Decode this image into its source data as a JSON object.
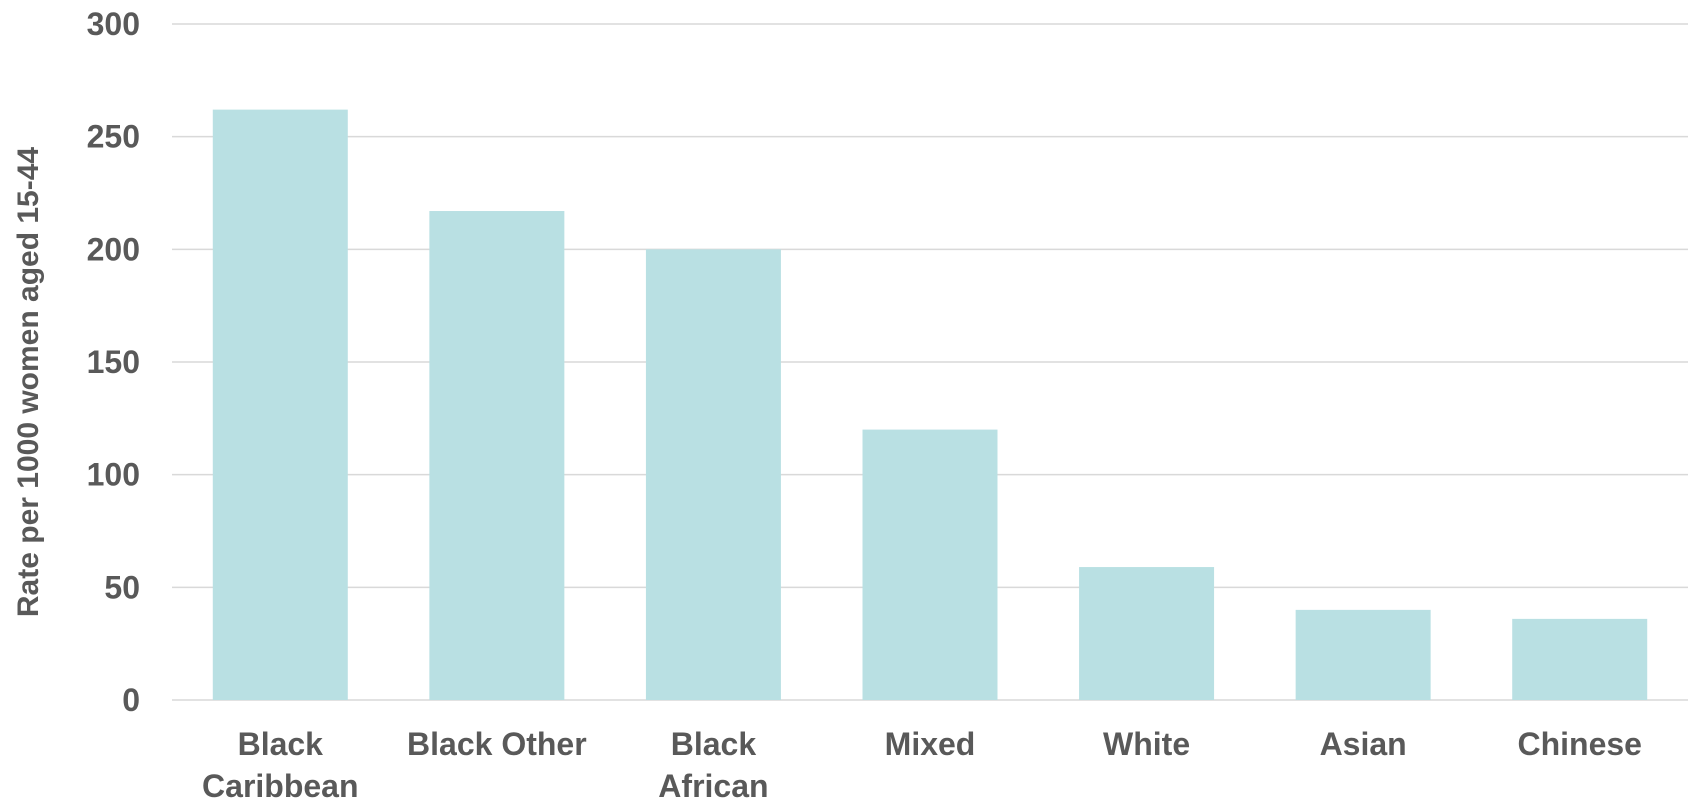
{
  "chart_data": {
    "type": "bar",
    "title": "",
    "xlabel": "",
    "ylabel": "Rate per 1000 women aged 15-44",
    "ylim": [
      0,
      300
    ],
    "yticks": [
      0,
      50,
      100,
      150,
      200,
      250,
      300
    ],
    "grid": true,
    "legend": "none",
    "categories": [
      [
        "Black",
        "Caribbean"
      ],
      [
        "Black Other"
      ],
      [
        "Black",
        "African"
      ],
      [
        "Mixed"
      ],
      [
        "White"
      ],
      [
        "Asian"
      ],
      [
        "Chinese"
      ]
    ],
    "values": [
      262,
      217,
      200,
      120,
      59,
      40,
      36
    ],
    "colors": {
      "bar": "#b9e0e3",
      "text": "#595959",
      "grid": "#d9d9d9"
    }
  }
}
